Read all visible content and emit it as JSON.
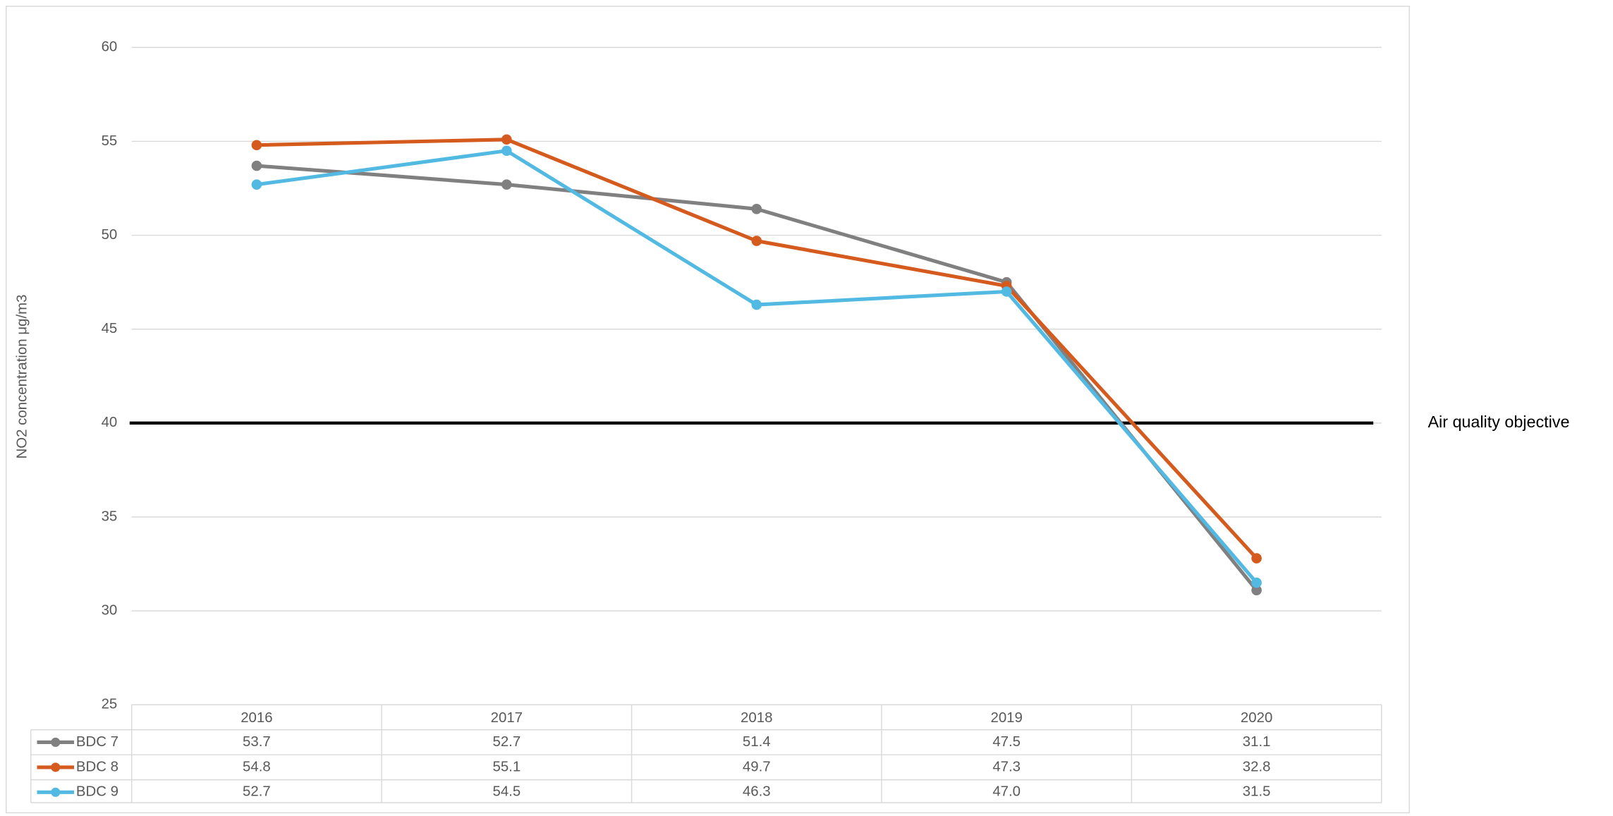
{
  "chart_data": {
    "type": "line",
    "y_label": "NO2 concentration μg/m3",
    "categories": [
      "2016",
      "2017",
      "2018",
      "2019",
      "2020"
    ],
    "series": [
      {
        "name": "BDC 7",
        "color": "#808080",
        "values": [
          53.7,
          52.7,
          51.4,
          47.5,
          31.1
        ]
      },
      {
        "name": "BDC 8",
        "color": "#d55a1e",
        "values": [
          54.8,
          55.1,
          49.7,
          47.3,
          32.8
        ]
      },
      {
        "name": "BDC 9",
        "color": "#52b9e2",
        "values": [
          52.7,
          54.5,
          46.3,
          47.0,
          31.5
        ],
        "value_labels": [
          "52.7",
          "54.5",
          "46.3",
          "47.0",
          "31.5"
        ]
      }
    ],
    "objective": {
      "label": "Air quality objective",
      "value": 40,
      "color": "#000000"
    },
    "ylim": [
      25,
      60
    ],
    "yticks": [
      25,
      30,
      35,
      40,
      45,
      50,
      55,
      60
    ],
    "grid": true,
    "data_table": true
  }
}
